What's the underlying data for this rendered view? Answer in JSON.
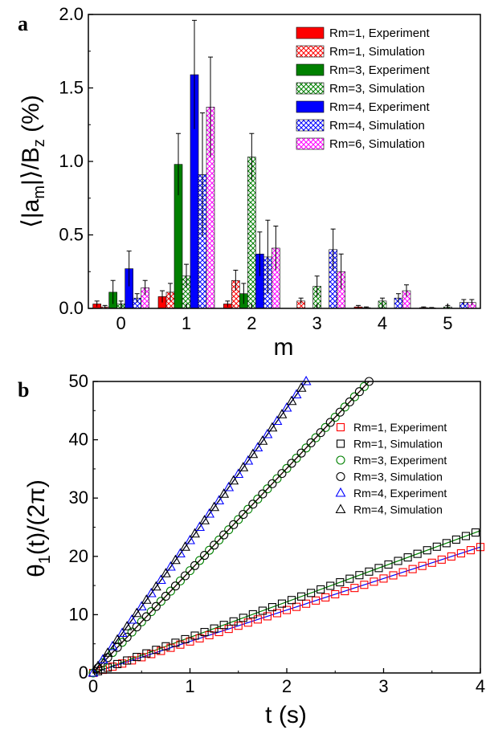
{
  "chart_data": [
    {
      "panel_label": "a",
      "type": "bar",
      "xlabel": "m",
      "ylabel": "⟨|a_m|⟩/B_z (%)",
      "ylim": [
        0,
        2.0
      ],
      "yticks": [
        "0.0",
        "0.5",
        "1.0",
        "1.5",
        "2.0"
      ],
      "categories": [
        "0",
        "1",
        "2",
        "3",
        "4",
        "5"
      ],
      "legend_position": "top-right",
      "series": [
        {
          "name": "Rm=1, Experiment",
          "color": "#ff0000",
          "pattern": "solid",
          "values": [
            0.03,
            0.08,
            0.03,
            0,
            0.01,
            0.005
          ],
          "errors": [
            0.02,
            0.04,
            0.02,
            0,
            0.01,
            0.005
          ]
        },
        {
          "name": "Rm=1, Simulation",
          "color": "#ff0000",
          "pattern": "hatch",
          "values": [
            0.01,
            0.11,
            0.19,
            0.05,
            0.005,
            0.003
          ],
          "errors": [
            0.01,
            0.06,
            0.07,
            0.02,
            0.005,
            0.003
          ]
        },
        {
          "name": "Rm=3, Experiment",
          "color": "#008000",
          "pattern": "solid",
          "values": [
            0.11,
            0.98,
            0.1,
            0,
            0,
            0
          ],
          "errors": [
            0.08,
            0.21,
            0.07,
            0,
            0,
            0
          ]
        },
        {
          "name": "Rm=3, Simulation",
          "color": "#008000",
          "pattern": "hatch",
          "values": [
            0.03,
            0.22,
            1.03,
            0.15,
            0.05,
            0.01
          ],
          "errors": [
            0.02,
            0.08,
            0.16,
            0.07,
            0.02,
            0.01
          ]
        },
        {
          "name": "Rm=4, Experiment",
          "color": "#0000ff",
          "pattern": "solid",
          "values": [
            0.27,
            1.59,
            0.37,
            0,
            0,
            0
          ],
          "errors": [
            0.12,
            0.37,
            0.15,
            0,
            0,
            0
          ]
        },
        {
          "name": "Rm=4, Simulation",
          "color": "#0000ff",
          "pattern": "hatch",
          "values": [
            0.07,
            0.91,
            0.35,
            0.4,
            0.07,
            0.04
          ],
          "errors": [
            0.03,
            0.42,
            0.25,
            0.14,
            0.03,
            0.02
          ]
        },
        {
          "name": "Rm=6, Simulation",
          "color": "#ff00ff",
          "pattern": "hatch",
          "values": [
            0.14,
            1.37,
            0.41,
            0.25,
            0.12,
            0.04
          ],
          "errors": [
            0.05,
            0.34,
            0.15,
            0.12,
            0.04,
            0.02
          ]
        }
      ]
    },
    {
      "panel_label": "b",
      "type": "scatter",
      "xlabel": "t (s)",
      "ylabel": "θ₁(t)/(2π)",
      "xlim": [
        0,
        4
      ],
      "ylim": [
        0,
        50
      ],
      "xticks": [
        "0",
        "1",
        "2",
        "3",
        "4"
      ],
      "yticks": [
        "0",
        "10",
        "20",
        "30",
        "40",
        "50"
      ],
      "legend_position": "right",
      "series": [
        {
          "name": "Rm=1, Experiment",
          "color": "#ff0000",
          "marker": "square",
          "x": [
            0,
            0.5,
            1.0,
            1.5,
            2.0,
            2.5,
            3.0,
            3.5,
            4.0
          ],
          "y": [
            0,
            2.7,
            5.4,
            8.1,
            10.8,
            13.5,
            16.2,
            18.9,
            21.6
          ],
          "fit_color": "#0000ff"
        },
        {
          "name": "Rm=1, Simulation",
          "color": "#000000",
          "marker": "square",
          "x": [
            0,
            0.5,
            1.0,
            1.5,
            2.0,
            2.5,
            3.0,
            3.5,
            4.0
          ],
          "y": [
            0,
            3.05,
            6.1,
            9.15,
            12.2,
            15.25,
            18.3,
            21.35,
            24.4
          ],
          "fit_color": "#008000"
        },
        {
          "name": "Rm=3, Experiment",
          "color": "#008000",
          "marker": "circle",
          "x": [
            0,
            0.5,
            1.0,
            1.5,
            2.0,
            2.5,
            2.85
          ],
          "y": [
            0,
            8.8,
            17.6,
            26.4,
            35.2,
            44.0,
            50.0
          ],
          "fit_color": "#ff0000"
        },
        {
          "name": "Rm=3, Simulation",
          "color": "#000000",
          "marker": "circle",
          "x": [
            0,
            0.5,
            1.0,
            1.5,
            2.0,
            2.5,
            2.85
          ],
          "y": [
            0,
            8.8,
            17.6,
            26.4,
            35.2,
            44.0,
            50.0
          ],
          "fit_color": "#000000"
        },
        {
          "name": "Rm=4, Experiment",
          "color": "#0000ff",
          "marker": "triangle",
          "x": [
            0,
            0.5,
            1.0,
            1.5,
            2.0,
            2.2
          ],
          "y": [
            0,
            11.4,
            22.8,
            34.2,
            45.6,
            50.0
          ],
          "fit_color": "#0000ff"
        },
        {
          "name": "Rm=4, Simulation",
          "color": "#000000",
          "marker": "triangle",
          "x": [
            0,
            0.5,
            1.0,
            1.5,
            2.0,
            2.2
          ],
          "y": [
            0,
            11.4,
            22.8,
            34.2,
            45.6,
            50.0
          ],
          "fit_color": "#000000"
        }
      ]
    }
  ]
}
